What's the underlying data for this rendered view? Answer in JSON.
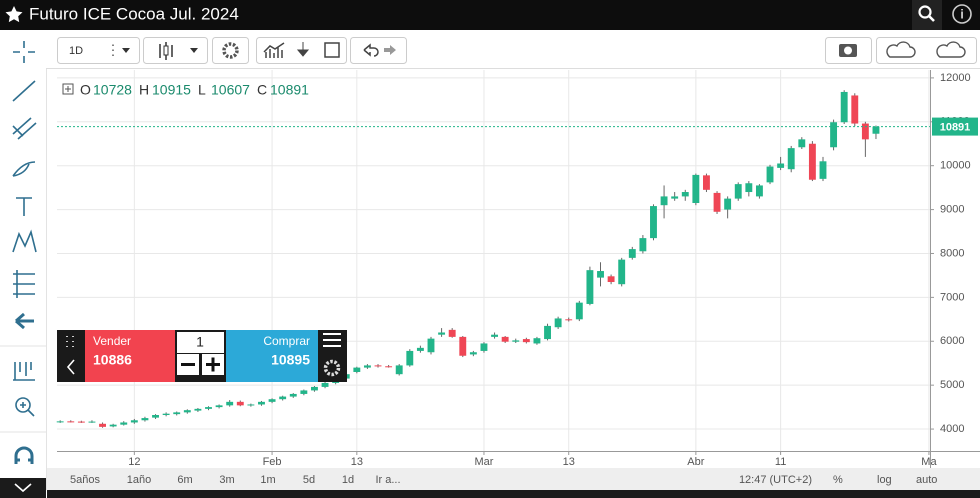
{
  "header": {
    "title": "Futuro ICE Cocoa Jul. 2024"
  },
  "toolbar": {
    "interval": "1D"
  },
  "chart_data": {
    "type": "candlestick",
    "legend_labels": [
      "O",
      "H",
      "L",
      "C"
    ],
    "open": [
      4170,
      4175,
      4170,
      4165,
      4120,
      4060,
      4100,
      4150,
      4200,
      4260,
      4320,
      4340,
      4380,
      4420,
      4460,
      4500,
      4540,
      4620,
      4540,
      4560,
      4620,
      4680,
      4740,
      4800,
      4880,
      4960,
      5050,
      5150,
      5300,
      5400,
      5450,
      5430,
      5250,
      5450,
      5780,
      5750,
      6150,
      6260,
      6100,
      5700,
      5780,
      6100,
      6100,
      5990,
      6050,
      5950,
      6050,
      6320,
      6500,
      6500,
      6850,
      7450,
      7480,
      7300,
      7900,
      8050,
      8350,
      9100,
      9250,
      9300,
      9150,
      9780,
      9380,
      9000,
      9250,
      9400,
      9300,
      9620,
      9950,
      9920,
      10420,
      10500,
      9700,
      10420,
      10990,
      11600,
      10960,
      10728
    ],
    "high": [
      4200,
      4200,
      4190,
      4200,
      4150,
      4120,
      4180,
      4230,
      4280,
      4340,
      4380,
      4400,
      4450,
      4480,
      4520,
      4560,
      4660,
      4650,
      4580,
      4640,
      4700,
      4760,
      4820,
      4900,
      4980,
      5080,
      5180,
      5280,
      5420,
      5480,
      5480,
      5460,
      5480,
      5820,
      5900,
      6100,
      6300,
      6300,
      6120,
      5780,
      5980,
      6200,
      6120,
      6060,
      6080,
      6100,
      6400,
      6560,
      6540,
      6920,
      7700,
      7800,
      7520,
      7900,
      8150,
      8420,
      9120,
      9550,
      9400,
      9450,
      9820,
      9820,
      9420,
      9300,
      9620,
      9650,
      9580,
      10020,
      10200,
      10450,
      10650,
      10560,
      10200,
      11050,
      11720,
      11650,
      11000,
      10915
    ],
    "low": [
      4140,
      4150,
      4140,
      4140,
      4030,
      4040,
      4080,
      4120,
      4170,
      4230,
      4290,
      4310,
      4350,
      4390,
      4430,
      4470,
      4510,
      4520,
      4510,
      4530,
      4590,
      4650,
      4710,
      4770,
      4850,
      4930,
      5020,
      5120,
      5270,
      5370,
      5400,
      5400,
      5220,
      5420,
      5740,
      5700,
      6100,
      6080,
      5640,
      5660,
      5740,
      6060,
      5960,
      5960,
      5950,
      5920,
      6020,
      6280,
      6450,
      6460,
      6820,
      7250,
      7300,
      7250,
      7860,
      8000,
      8300,
      8800,
      9200,
      9200,
      9100,
      9400,
      8900,
      8800,
      9200,
      9300,
      9250,
      9580,
      9900,
      9850,
      10380,
      9650,
      9650,
      10350,
      10950,
      10900,
      10200,
      10607
    ],
    "close": [
      4175,
      4170,
      4160,
      4170,
      4050,
      4100,
      4150,
      4200,
      4250,
      4320,
      4350,
      4380,
      4430,
      4460,
      4500,
      4540,
      4620,
      4540,
      4560,
      4620,
      4680,
      4740,
      4800,
      4880,
      4960,
      5050,
      5150,
      5250,
      5400,
      5450,
      5430,
      5420,
      5450,
      5780,
      5850,
      6060,
      6200,
      6100,
      5670,
      5750,
      5950,
      6150,
      5990,
      6020,
      5980,
      6070,
      6350,
      6520,
      6480,
      6880,
      7620,
      7600,
      7350,
      7860,
      8100,
      8350,
      9080,
      9300,
      9300,
      9400,
      9790,
      9450,
      8950,
      9250,
      9580,
      9600,
      9550,
      9980,
      10050,
      10400,
      10600,
      9680,
      10100,
      10990,
      11680,
      10960,
      10600,
      10891
    ],
    "up_color": "#22b58a",
    "down_color": "#ef4655",
    "ylim": [
      3500,
      12180
    ],
    "yticks": [
      4000,
      5000,
      6000,
      7000,
      8000,
      9000,
      10000,
      11000,
      12000
    ],
    "xlim": [
      -0.3,
      82.1
    ],
    "xticks": [
      {
        "value": 7,
        "label": "12"
      },
      {
        "value": 20,
        "label": "Feb"
      },
      {
        "value": 28,
        "label": "13"
      },
      {
        "value": 40,
        "label": "Mar"
      },
      {
        "value": 48,
        "label": "13"
      },
      {
        "value": 60,
        "label": "Abr"
      },
      {
        "value": 68,
        "label": "11"
      },
      {
        "value": 82,
        "label": "Ma"
      }
    ],
    "grid": true,
    "last_price_line": true
  },
  "trade_panel": {
    "sell_label": "Vender",
    "sell_price": 10886,
    "quantity": 1,
    "buy_label": "Comprar",
    "buy_price": 10895
  },
  "range_bar": {
    "buttons": [
      "5años",
      "1año",
      "6m",
      "3m",
      "1m",
      "5d",
      "1d",
      "Ir a..."
    ],
    "time": "12:47 (UTC+2)",
    "options": [
      "%",
      "log",
      "auto"
    ]
  }
}
